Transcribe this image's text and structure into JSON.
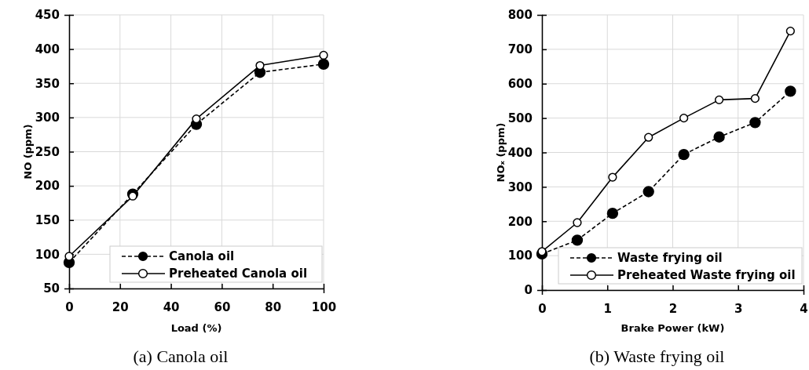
{
  "chart_data": [
    {
      "type": "line",
      "title": "(a) Canola oil",
      "xlabel": "Load (%)",
      "ylabel": "NO (ppm)",
      "x": [
        0,
        25,
        50,
        75,
        100
      ],
      "series": [
        {
          "name": "Canola oil",
          "color": "#000000",
          "line_style": "dashed",
          "values": [
            88,
            188,
            290,
            366,
            378
          ]
        },
        {
          "name": "Preheated Canola oil",
          "color": "#000000",
          "line_style": "solid",
          "values": [
            97,
            185,
            298,
            376,
            391
          ]
        }
      ],
      "xlim": [
        0,
        100
      ],
      "xticks": [
        0,
        20,
        40,
        60,
        80,
        100
      ],
      "ylim": [
        50,
        450
      ],
      "yticks": [
        50,
        100,
        150,
        200,
        250,
        300,
        350,
        400,
        450
      ],
      "grid": true,
      "legend": "bottom right",
      "marker": "circle"
    },
    {
      "type": "line",
      "title": "(b) Waste frying oil",
      "xlabel": "Brake Power (kW)",
      "ylabel": "NOₓ (ppm)",
      "x": [
        0,
        0.54,
        1.08,
        1.63,
        2.17,
        2.71,
        3.26,
        3.8
      ],
      "series": [
        {
          "name": "Waste frying oil",
          "color": "#000000",
          "line_style": "dashed",
          "values": [
            105,
            145,
            223,
            286,
            394,
            445,
            487,
            578
          ]
        },
        {
          "name": "Preheated Waste frying oil",
          "color": "#000000",
          "line_style": "solid",
          "values": [
            112,
            196,
            328,
            444,
            500,
            553,
            557,
            753
          ]
        }
      ],
      "xlim": [
        0,
        4
      ],
      "xticks": [
        0,
        1,
        2,
        3,
        4
      ],
      "ylim": [
        0,
        800
      ],
      "yticks": [
        0,
        100,
        200,
        300,
        400,
        500,
        600,
        700,
        800
      ],
      "grid": true,
      "legend": "bottom right",
      "marker": "circle"
    }
  ]
}
